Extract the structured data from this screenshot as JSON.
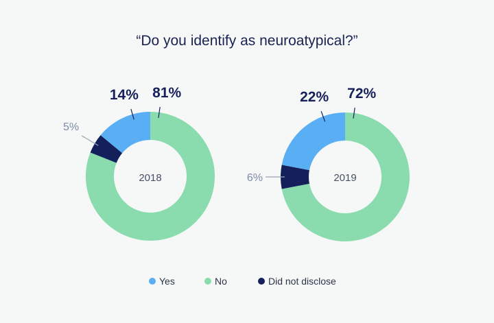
{
  "title": "“Do you identify as neuroatypical?”",
  "colors": {
    "yes": "#5aaef4",
    "no": "#8adcae",
    "did_not_disclose": "#14205a"
  },
  "legend": [
    {
      "key": "yes",
      "label": "Yes"
    },
    {
      "key": "no",
      "label": "No"
    },
    {
      "key": "did_not_disclose",
      "label": "Did not disclose"
    }
  ],
  "chart_data": [
    {
      "type": "pie",
      "variant": "donut",
      "center_label": "2018",
      "slices": [
        {
          "key": "no",
          "label": "No",
          "value": 81,
          "display": "81%"
        },
        {
          "key": "did_not_disclose",
          "label": "Did not disclose",
          "value": 5,
          "display": "5%"
        },
        {
          "key": "yes",
          "label": "Yes",
          "value": 14,
          "display": "14%"
        }
      ]
    },
    {
      "type": "pie",
      "variant": "donut",
      "center_label": "2019",
      "slices": [
        {
          "key": "no",
          "label": "No",
          "value": 72,
          "display": "72%"
        },
        {
          "key": "did_not_disclose",
          "label": "Did not disclose",
          "value": 6,
          "display": "6%"
        },
        {
          "key": "yes",
          "label": "Yes",
          "value": 22,
          "display": "22%"
        }
      ]
    }
  ]
}
